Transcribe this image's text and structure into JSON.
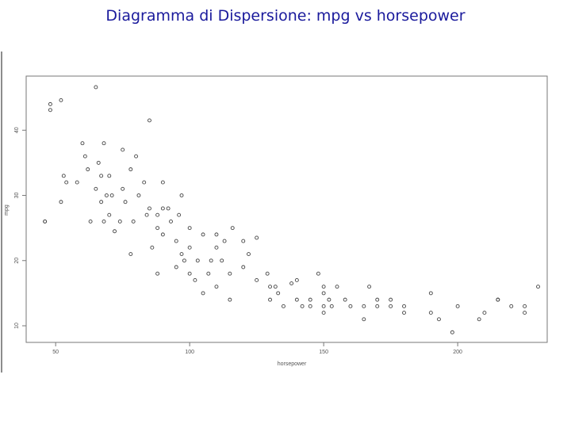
{
  "chart_data": {
    "type": "scatter",
    "title": "Diagramma di Dispersione: mpg vs horsepower",
    "x_label": "horsepower",
    "y_label": "mpg",
    "color": "#444444",
    "xlim": [
      39,
      233.4
    ],
    "ylim": [
      7.45,
      48.3
    ],
    "xticks": [
      50,
      100,
      150,
      200
    ],
    "yticks": [
      10,
      20,
      30,
      40
    ],
    "grid": false,
    "x": [
      46,
      46,
      48,
      48,
      52,
      52,
      53,
      54,
      58,
      60,
      61,
      62,
      63,
      65,
      65,
      66,
      67,
      67,
      68,
      68,
      69,
      70,
      70,
      71,
      72,
      74,
      75,
      75,
      76,
      78,
      78,
      79,
      80,
      81,
      83,
      84,
      85,
      85,
      86,
      88,
      88,
      88,
      90,
      90,
      90,
      92,
      93,
      95,
      95,
      96,
      97,
      97,
      98,
      100,
      100,
      100,
      102,
      103,
      105,
      105,
      107,
      108,
      110,
      110,
      110,
      112,
      113,
      115,
      115,
      116,
      120,
      120,
      122,
      125,
      125,
      129,
      130,
      130,
      132,
      133,
      135,
      138,
      140,
      140,
      142,
      145,
      145,
      148,
      150,
      150,
      150,
      150,
      152,
      153,
      155,
      158,
      160,
      165,
      165,
      167,
      170,
      170,
      175,
      175,
      180,
      180,
      190,
      190,
      193,
      198,
      200,
      208,
      210,
      215,
      215,
      220,
      225,
      225,
      230
    ],
    "y": [
      26,
      26,
      43.1,
      44,
      29,
      44.6,
      33,
      32,
      32,
      38,
      36,
      34,
      26,
      46.6,
      31,
      35,
      33,
      29,
      38,
      26,
      30,
      33,
      27,
      30,
      24.5,
      26,
      37,
      31,
      29,
      34,
      21,
      26,
      36,
      30,
      32,
      27,
      41.5,
      28,
      22,
      27,
      25,
      18,
      32,
      24,
      28,
      28,
      26,
      23,
      19,
      27,
      21,
      30,
      20,
      18,
      22,
      25,
      17,
      20,
      24,
      15,
      18,
      20,
      22,
      16,
      24,
      20,
      23,
      18,
      14,
      25,
      19,
      23,
      21,
      23.5,
      17,
      18,
      14,
      16,
      16,
      15,
      13,
      16.5,
      17,
      14,
      13,
      14,
      13,
      18,
      16,
      15,
      13,
      12,
      14,
      13,
      16,
      14,
      13,
      13,
      11,
      16,
      13,
      14,
      14,
      13,
      12,
      13,
      12,
      15,
      11,
      9,
      13,
      11,
      12,
      14,
      14,
      13,
      13,
      12,
      16
    ]
  }
}
